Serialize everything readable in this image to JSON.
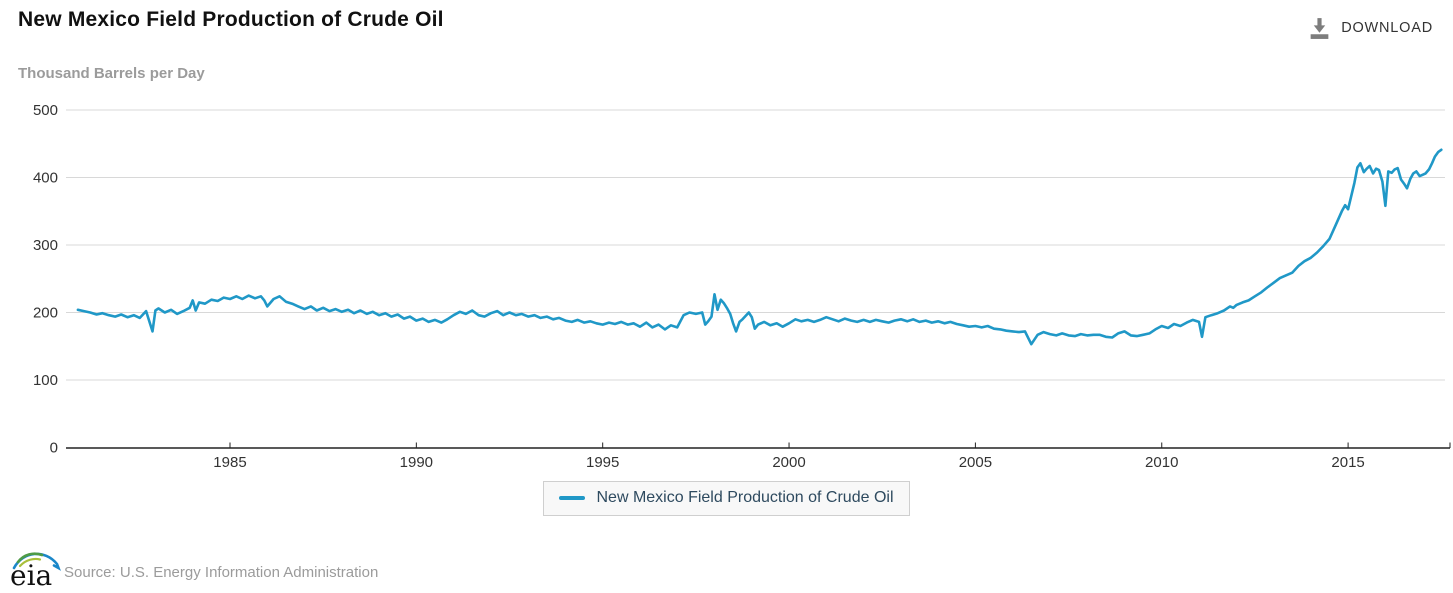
{
  "header": {
    "title": "New Mexico Field Production of Crude Oil",
    "units": "Thousand Barrels per Day",
    "download_label": "DOWNLOAD"
  },
  "legend": {
    "label": "New Mexico Field Production of Crude Oil"
  },
  "footer": {
    "logo_text": "eia",
    "source": "Source: U.S. Energy Information Administration"
  },
  "icons": [
    "download-icon",
    "eia-logo"
  ],
  "colors": {
    "series_line": "#2098c7",
    "grid": "#d8d8d8",
    "axis": "#222222",
    "tick_text": "#333333",
    "muted_text": "#9b9b9b",
    "legend_text": "#2e4a5f",
    "legend_bg": "#f8f8f8",
    "legend_border": "#cfcfcf",
    "download_icon": "#7d7d7d",
    "logo_green": "#4e9b47",
    "logo_olive": "#a9bf3a",
    "logo_blue": "#1b87c9"
  },
  "chart_data": {
    "type": "line",
    "title": "New Mexico Field Production of Crude Oil",
    "xlabel": "",
    "ylabel": "Thousand Barrels per Day",
    "ylim": [
      0,
      500
    ],
    "yticks": [
      0,
      100,
      200,
      300,
      400,
      500
    ],
    "xticks": [
      1985,
      1990,
      1995,
      2000,
      2005,
      2010,
      2015
    ],
    "xlim": [
      1980.6,
      2017.6
    ],
    "grid": true,
    "legend_position": "bottom",
    "series": [
      {
        "name": "New Mexico Field Production of Crude Oil",
        "color": "#2098c7",
        "points": [
          [
            1980.92,
            204
          ],
          [
            1981.08,
            202
          ],
          [
            1981.25,
            200
          ],
          [
            1981.42,
            197
          ],
          [
            1981.58,
            199
          ],
          [
            1981.75,
            196
          ],
          [
            1981.92,
            194
          ],
          [
            1982.08,
            197
          ],
          [
            1982.25,
            193
          ],
          [
            1982.42,
            196
          ],
          [
            1982.58,
            192
          ],
          [
            1982.75,
            202
          ],
          [
            1982.92,
            172
          ],
          [
            1983.0,
            203
          ],
          [
            1983.08,
            206
          ],
          [
            1983.25,
            200
          ],
          [
            1983.42,
            204
          ],
          [
            1983.58,
            198
          ],
          [
            1983.75,
            202
          ],
          [
            1983.92,
            207
          ],
          [
            1984.0,
            218
          ],
          [
            1984.08,
            203
          ],
          [
            1984.17,
            215
          ],
          [
            1984.33,
            213
          ],
          [
            1984.5,
            219
          ],
          [
            1984.67,
            217
          ],
          [
            1984.83,
            222
          ],
          [
            1985.0,
            220
          ],
          [
            1985.17,
            224
          ],
          [
            1985.33,
            220
          ],
          [
            1985.5,
            225
          ],
          [
            1985.67,
            221
          ],
          [
            1985.83,
            224
          ],
          [
            1985.92,
            218
          ],
          [
            1986.0,
            209
          ],
          [
            1986.17,
            220
          ],
          [
            1986.33,
            224
          ],
          [
            1986.5,
            216
          ],
          [
            1986.67,
            213
          ],
          [
            1986.83,
            209
          ],
          [
            1987.0,
            205
          ],
          [
            1987.17,
            209
          ],
          [
            1987.33,
            203
          ],
          [
            1987.5,
            207
          ],
          [
            1987.67,
            202
          ],
          [
            1987.83,
            205
          ],
          [
            1988.0,
            201
          ],
          [
            1988.17,
            204
          ],
          [
            1988.33,
            199
          ],
          [
            1988.5,
            203
          ],
          [
            1988.67,
            198
          ],
          [
            1988.83,
            201
          ],
          [
            1989.0,
            196
          ],
          [
            1989.17,
            199
          ],
          [
            1989.33,
            194
          ],
          [
            1989.5,
            197
          ],
          [
            1989.67,
            191
          ],
          [
            1989.83,
            194
          ],
          [
            1990.0,
            188
          ],
          [
            1990.17,
            191
          ],
          [
            1990.33,
            186
          ],
          [
            1990.5,
            189
          ],
          [
            1990.67,
            185
          ],
          [
            1990.83,
            190
          ],
          [
            1991.0,
            196
          ],
          [
            1991.17,
            201
          ],
          [
            1991.33,
            198
          ],
          [
            1991.5,
            203
          ],
          [
            1991.67,
            196
          ],
          [
            1991.83,
            194
          ],
          [
            1992.0,
            199
          ],
          [
            1992.17,
            202
          ],
          [
            1992.33,
            196
          ],
          [
            1992.5,
            200
          ],
          [
            1992.67,
            196
          ],
          [
            1992.83,
            198
          ],
          [
            1993.0,
            194
          ],
          [
            1993.17,
            196
          ],
          [
            1993.33,
            192
          ],
          [
            1993.5,
            194
          ],
          [
            1993.67,
            190
          ],
          [
            1993.83,
            192
          ],
          [
            1994.0,
            188
          ],
          [
            1994.17,
            186
          ],
          [
            1994.33,
            189
          ],
          [
            1994.5,
            185
          ],
          [
            1994.67,
            187
          ],
          [
            1994.83,
            184
          ],
          [
            1995.0,
            182
          ],
          [
            1995.17,
            185
          ],
          [
            1995.33,
            183
          ],
          [
            1995.5,
            186
          ],
          [
            1995.67,
            182
          ],
          [
            1995.83,
            184
          ],
          [
            1996.0,
            179
          ],
          [
            1996.17,
            185
          ],
          [
            1996.33,
            178
          ],
          [
            1996.5,
            182
          ],
          [
            1996.67,
            175
          ],
          [
            1996.83,
            181
          ],
          [
            1997.0,
            178
          ],
          [
            1997.17,
            196
          ],
          [
            1997.33,
            200
          ],
          [
            1997.5,
            198
          ],
          [
            1997.67,
            200
          ],
          [
            1997.75,
            182
          ],
          [
            1997.83,
            187
          ],
          [
            1997.92,
            194
          ],
          [
            1998.0,
            227
          ],
          [
            1998.08,
            204
          ],
          [
            1998.17,
            219
          ],
          [
            1998.25,
            214
          ],
          [
            1998.33,
            207
          ],
          [
            1998.42,
            198
          ],
          [
            1998.5,
            184
          ],
          [
            1998.58,
            172
          ],
          [
            1998.67,
            186
          ],
          [
            1998.75,
            190
          ],
          [
            1998.92,
            200
          ],
          [
            1999.0,
            193
          ],
          [
            1999.08,
            176
          ],
          [
            1999.17,
            182
          ],
          [
            1999.33,
            186
          ],
          [
            1999.5,
            181
          ],
          [
            1999.67,
            184
          ],
          [
            1999.83,
            179
          ],
          [
            2000.0,
            184
          ],
          [
            2000.17,
            190
          ],
          [
            2000.33,
            187
          ],
          [
            2000.5,
            189
          ],
          [
            2000.67,
            186
          ],
          [
            2000.83,
            189
          ],
          [
            2001.0,
            193
          ],
          [
            2001.17,
            190
          ],
          [
            2001.33,
            187
          ],
          [
            2001.5,
            191
          ],
          [
            2001.67,
            188
          ],
          [
            2001.83,
            186
          ],
          [
            2002.0,
            189
          ],
          [
            2002.17,
            186
          ],
          [
            2002.33,
            189
          ],
          [
            2002.5,
            187
          ],
          [
            2002.67,
            185
          ],
          [
            2002.83,
            188
          ],
          [
            2003.0,
            190
          ],
          [
            2003.17,
            187
          ],
          [
            2003.33,
            190
          ],
          [
            2003.5,
            186
          ],
          [
            2003.67,
            188
          ],
          [
            2003.83,
            185
          ],
          [
            2004.0,
            187
          ],
          [
            2004.17,
            184
          ],
          [
            2004.33,
            186
          ],
          [
            2004.5,
            183
          ],
          [
            2004.67,
            181
          ],
          [
            2004.83,
            179
          ],
          [
            2005.0,
            180
          ],
          [
            2005.17,
            178
          ],
          [
            2005.33,
            180
          ],
          [
            2005.5,
            176
          ],
          [
            2005.67,
            175
          ],
          [
            2005.83,
            173
          ],
          [
            2006.0,
            172
          ],
          [
            2006.17,
            171
          ],
          [
            2006.33,
            172
          ],
          [
            2006.5,
            153
          ],
          [
            2006.67,
            167
          ],
          [
            2006.83,
            171
          ],
          [
            2007.0,
            168
          ],
          [
            2007.17,
            166
          ],
          [
            2007.33,
            169
          ],
          [
            2007.5,
            166
          ],
          [
            2007.67,
            165
          ],
          [
            2007.83,
            168
          ],
          [
            2008.0,
            166
          ],
          [
            2008.17,
            167
          ],
          [
            2008.33,
            167
          ],
          [
            2008.5,
            164
          ],
          [
            2008.67,
            163
          ],
          [
            2008.83,
            169
          ],
          [
            2009.0,
            172
          ],
          [
            2009.17,
            166
          ],
          [
            2009.33,
            165
          ],
          [
            2009.5,
            167
          ],
          [
            2009.67,
            169
          ],
          [
            2009.83,
            175
          ],
          [
            2010.0,
            180
          ],
          [
            2010.17,
            177
          ],
          [
            2010.33,
            183
          ],
          [
            2010.5,
            180
          ],
          [
            2010.67,
            185
          ],
          [
            2010.83,
            189
          ],
          [
            2011.0,
            186
          ],
          [
            2011.08,
            164
          ],
          [
            2011.17,
            193
          ],
          [
            2011.33,
            196
          ],
          [
            2011.5,
            199
          ],
          [
            2011.67,
            203
          ],
          [
            2011.83,
            209
          ],
          [
            2011.92,
            207
          ],
          [
            2012.0,
            211
          ],
          [
            2012.17,
            215
          ],
          [
            2012.33,
            218
          ],
          [
            2012.5,
            224
          ],
          [
            2012.67,
            230
          ],
          [
            2012.83,
            237
          ],
          [
            2013.0,
            244
          ],
          [
            2013.17,
            251
          ],
          [
            2013.33,
            255
          ],
          [
            2013.5,
            259
          ],
          [
            2013.67,
            269
          ],
          [
            2013.83,
            276
          ],
          [
            2014.0,
            281
          ],
          [
            2014.17,
            289
          ],
          [
            2014.33,
            298
          ],
          [
            2014.5,
            309
          ],
          [
            2014.67,
            330
          ],
          [
            2014.83,
            350
          ],
          [
            2014.92,
            359
          ],
          [
            2015.0,
            353
          ],
          [
            2015.17,
            392
          ],
          [
            2015.25,
            415
          ],
          [
            2015.33,
            421
          ],
          [
            2015.42,
            408
          ],
          [
            2015.5,
            413
          ],
          [
            2015.58,
            417
          ],
          [
            2015.67,
            406
          ],
          [
            2015.75,
            413
          ],
          [
            2015.83,
            411
          ],
          [
            2015.92,
            394
          ],
          [
            2016.0,
            358
          ],
          [
            2016.08,
            409
          ],
          [
            2016.17,
            407
          ],
          [
            2016.25,
            412
          ],
          [
            2016.33,
            414
          ],
          [
            2016.42,
            397
          ],
          [
            2016.5,
            391
          ],
          [
            2016.58,
            384
          ],
          [
            2016.67,
            398
          ],
          [
            2016.75,
            406
          ],
          [
            2016.83,
            409
          ],
          [
            2016.92,
            402
          ],
          [
            2017.0,
            404
          ],
          [
            2017.08,
            406
          ],
          [
            2017.17,
            412
          ],
          [
            2017.25,
            421
          ],
          [
            2017.33,
            431
          ],
          [
            2017.42,
            438
          ],
          [
            2017.5,
            441
          ]
        ]
      }
    ]
  }
}
